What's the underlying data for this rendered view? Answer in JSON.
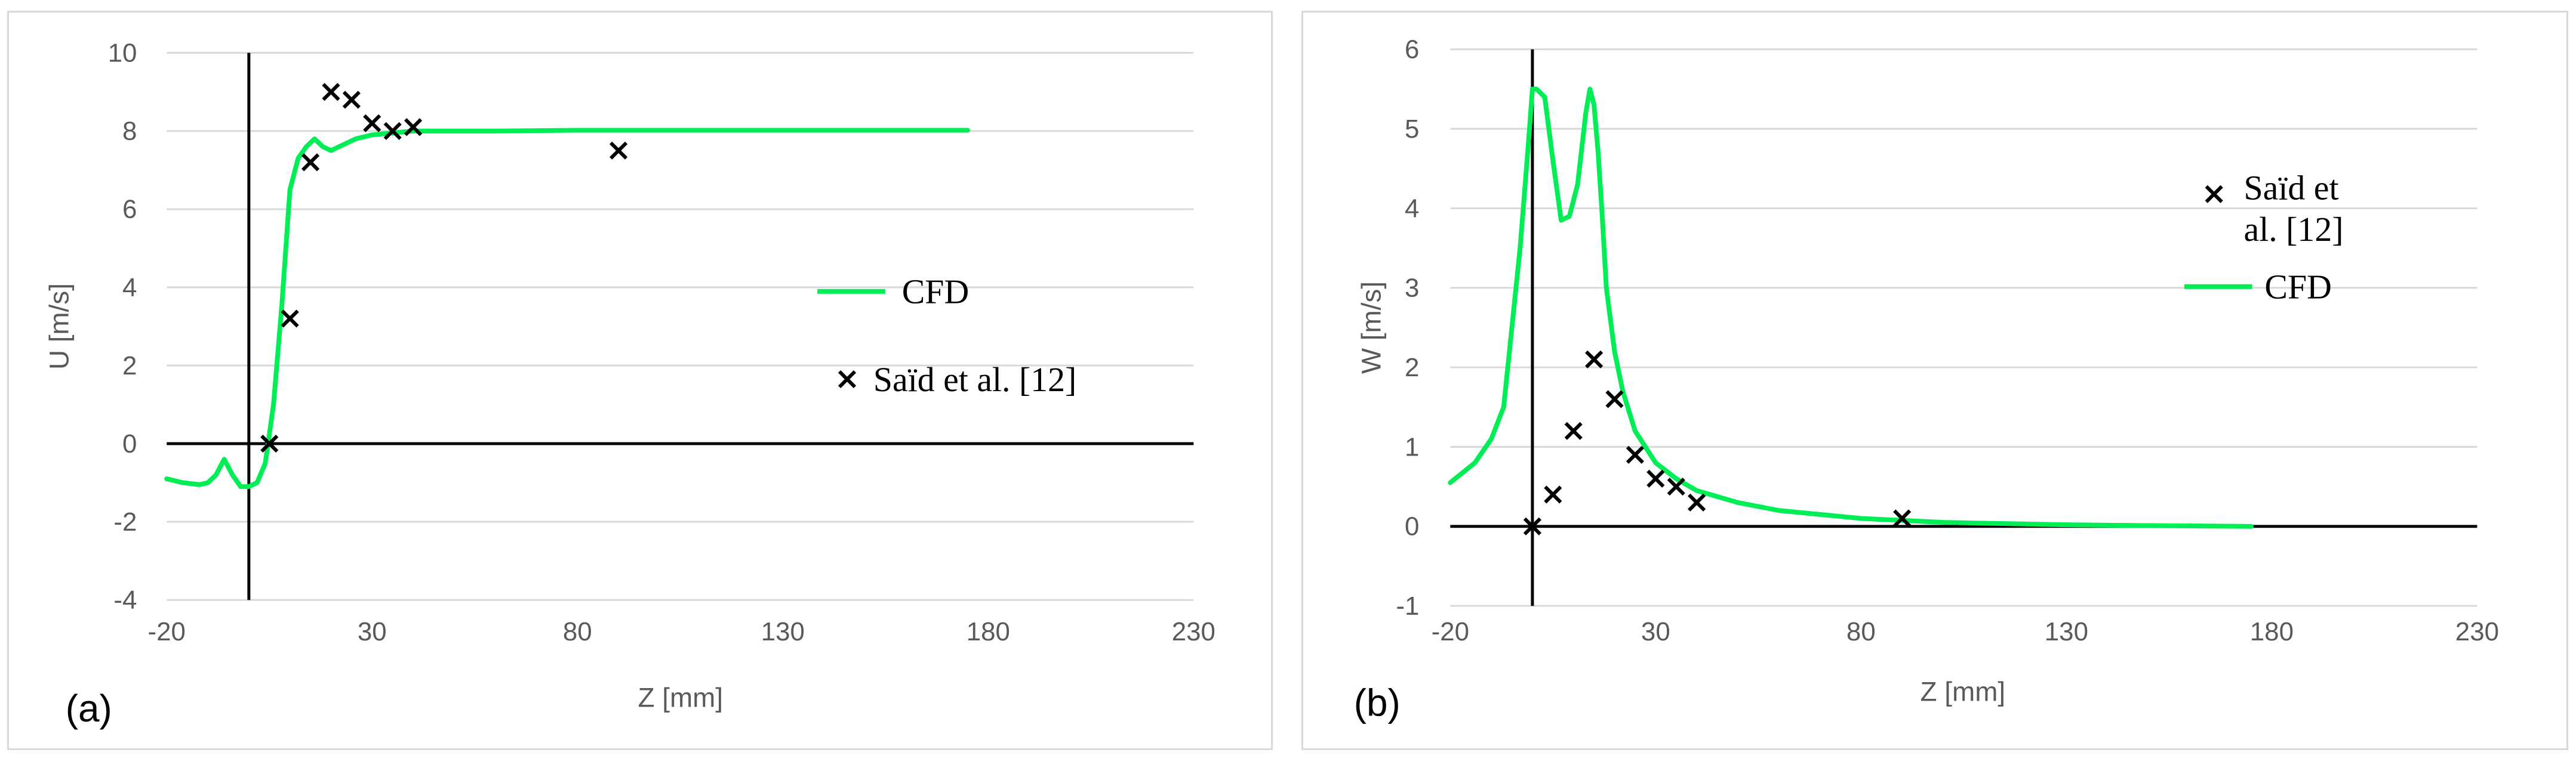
{
  "chart_data": [
    {
      "type": "line",
      "panel_label": "(a)",
      "xlabel": "Z [mm]",
      "ylabel": "U [m/s]",
      "xlim": [
        -20,
        230
      ],
      "ylim": [
        -4,
        10
      ],
      "x_ticks": [
        "-20",
        "30",
        "80",
        "130",
        "180",
        "230"
      ],
      "y_ticks": [
        "-4",
        "-2",
        "0",
        "2",
        "4",
        "6",
        "8",
        "10"
      ],
      "x_tick_values": [
        -20,
        30,
        80,
        130,
        180,
        230
      ],
      "y_tick_values": [
        -4,
        -2,
        0,
        2,
        4,
        6,
        8,
        10
      ],
      "legend_position": "right",
      "series": [
        {
          "name": "CFD",
          "kind": "line",
          "color": "#00ee55",
          "x": [
            -20,
            -16,
            -12,
            -10,
            -8,
            -6,
            -4,
            -2,
            0,
            2,
            4,
            6,
            8,
            10,
            12,
            14,
            16,
            18,
            20,
            22,
            24,
            26,
            30,
            35,
            40,
            50,
            60,
            80,
            100,
            130,
            150,
            175
          ],
          "y": [
            -0.9,
            -1.0,
            -1.05,
            -1.0,
            -0.8,
            -0.4,
            -0.8,
            -1.1,
            -1.1,
            -1.0,
            -0.5,
            1.0,
            3.5,
            6.5,
            7.3,
            7.6,
            7.8,
            7.6,
            7.5,
            7.6,
            7.7,
            7.8,
            7.9,
            7.95,
            8.0,
            8.0,
            8.0,
            8.02,
            8.02,
            8.02,
            8.02,
            8.02
          ]
        },
        {
          "name": "Saïd et al. [12]",
          "kind": "scatter",
          "color": "#000000",
          "x": [
            5,
            10,
            15,
            20,
            25,
            30,
            35,
            40,
            90
          ],
          "y": [
            0,
            3.2,
            7.2,
            9.0,
            8.8,
            8.2,
            8.0,
            8.1,
            7.5
          ]
        }
      ]
    },
    {
      "type": "line",
      "panel_label": "(b)",
      "xlabel": "Z [mm]",
      "ylabel": "W [m/s]",
      "xlim": [
        -20,
        230
      ],
      "ylim": [
        -1,
        6
      ],
      "x_ticks": [
        "-20",
        "30",
        "80",
        "130",
        "180",
        "230"
      ],
      "y_ticks": [
        "-1",
        "0",
        "1",
        "2",
        "3",
        "4",
        "5",
        "6"
      ],
      "x_tick_values": [
        -20,
        30,
        80,
        130,
        180,
        230
      ],
      "y_tick_values": [
        -1,
        0,
        1,
        2,
        3,
        4,
        5,
        6
      ],
      "legend_position": "right",
      "series": [
        {
          "name": "Saïd et\nal. [12]",
          "kind": "scatter",
          "color": "#000000",
          "x": [
            0,
            5,
            10,
            15,
            20,
            25,
            30,
            35,
            40,
            90
          ],
          "y": [
            0,
            0.4,
            1.2,
            2.1,
            1.6,
            0.9,
            0.6,
            0.5,
            0.3,
            0.1
          ]
        },
        {
          "name": "CFD",
          "kind": "line",
          "color": "#00ee55",
          "x": [
            -20,
            -14,
            -10,
            -7,
            -5,
            -3,
            -1,
            0,
            1,
            3,
            5,
            7,
            9,
            11,
            13,
            14,
            15,
            16,
            17,
            18,
            20,
            22,
            25,
            30,
            35,
            40,
            50,
            60,
            80,
            100,
            130,
            150,
            175
          ],
          "y": [
            0.55,
            0.8,
            1.1,
            1.5,
            2.5,
            3.5,
            4.8,
            5.5,
            5.5,
            5.4,
            4.6,
            3.85,
            3.9,
            4.3,
            5.2,
            5.5,
            5.3,
            4.7,
            3.9,
            3.0,
            2.2,
            1.7,
            1.2,
            0.8,
            0.6,
            0.45,
            0.3,
            0.2,
            0.1,
            0.05,
            0.02,
            0.01,
            0.0
          ]
        }
      ]
    }
  ]
}
